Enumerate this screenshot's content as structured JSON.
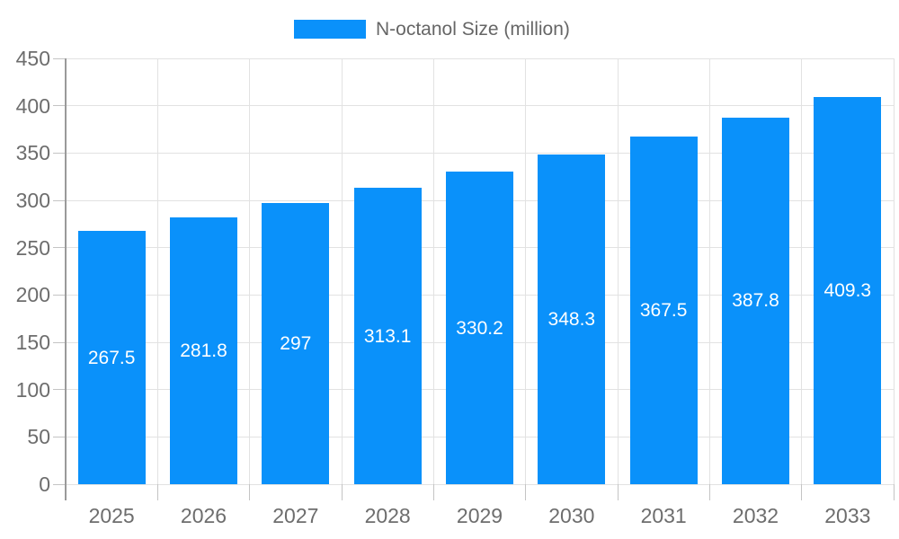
{
  "legend": {
    "label": "N-octanol Size (million)"
  },
  "chart_data": {
    "type": "bar",
    "title": "N-octanol Size (million)",
    "categories": [
      "2025",
      "2026",
      "2027",
      "2028",
      "2029",
      "2030",
      "2031",
      "2032",
      "2033"
    ],
    "series": [
      {
        "name": "N-octanol Size (million)",
        "values": [
          267.5,
          281.8,
          297,
          313.1,
          330.2,
          348.3,
          367.5,
          387.8,
          409.3
        ]
      }
    ],
    "xlabel": "",
    "ylabel": "",
    "ylim": [
      0,
      450
    ],
    "yticks": [
      0,
      50,
      100,
      150,
      200,
      250,
      300,
      350,
      400,
      450
    ],
    "grid": true,
    "legend_position": "top-center",
    "value_labels": "inside-center-white"
  },
  "colors": {
    "bar": "#0a91fa",
    "grid": "#e2e2e2",
    "tick": "#c4c4c4",
    "axis": "#9a9a9a",
    "axis_text": "#6d6d6d",
    "legend_text": "#666666",
    "value_text": "#ffffff",
    "background": "#ffffff"
  }
}
